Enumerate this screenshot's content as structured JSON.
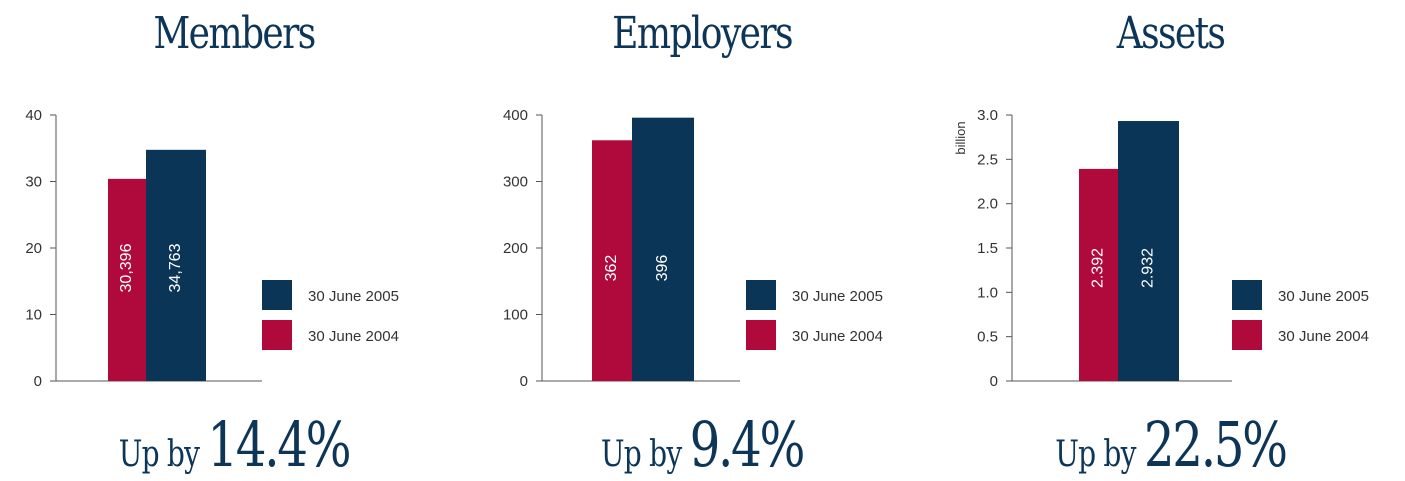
{
  "colors": {
    "navy": "#0b3557",
    "crimson": "#b00a3c",
    "axis": "#555555"
  },
  "chart_data": [
    {
      "type": "bar",
      "title": "Members",
      "unit": "",
      "ylim": [
        0,
        40
      ],
      "yticks": [
        "0",
        "10",
        "20",
        "30",
        "40"
      ],
      "ytick_values": [
        0,
        10,
        20,
        30,
        40
      ],
      "series": [
        {
          "name": "30 June 2004",
          "value": 30.396,
          "label": "30,396",
          "color": "#b00a3c"
        },
        {
          "name": "30 June 2005",
          "value": 34.763,
          "label": "34,763",
          "color": "#0b3557"
        }
      ],
      "legend": [
        "30 June 2005",
        "30 June 2004"
      ],
      "footer_prefix": "Up by ",
      "footer_value": "14.4%"
    },
    {
      "type": "bar",
      "title": "Employers",
      "unit": "",
      "ylim": [
        0,
        400
      ],
      "yticks": [
        "0",
        "100",
        "200",
        "300",
        "400"
      ],
      "ytick_values": [
        0,
        100,
        200,
        300,
        400
      ],
      "series": [
        {
          "name": "30 June 2004",
          "value": 362,
          "label": "362",
          "color": "#b00a3c"
        },
        {
          "name": "30 June 2005",
          "value": 396,
          "label": "396",
          "color": "#0b3557"
        }
      ],
      "legend": [
        "30 June 2005",
        "30 June 2004"
      ],
      "footer_prefix": "Up by ",
      "footer_value": "9.4%"
    },
    {
      "type": "bar",
      "title": "Assets",
      "unit": "billion",
      "ylim": [
        0,
        3.0
      ],
      "yticks": [
        "0",
        "0.5",
        "1.0",
        "1.5",
        "2.0",
        "2.5",
        "3.0"
      ],
      "ytick_values": [
        0,
        0.5,
        1.0,
        1.5,
        2.0,
        2.5,
        3.0
      ],
      "series": [
        {
          "name": "30 June 2004",
          "value": 2.392,
          "label": "2.392",
          "color": "#b00a3c"
        },
        {
          "name": "30 June 2005",
          "value": 2.932,
          "label": "2.932",
          "color": "#0b3557"
        }
      ],
      "legend": [
        "30 June 2005",
        "30 June 2004"
      ],
      "footer_prefix": "Up by ",
      "footer_value": "22.5%"
    }
  ]
}
